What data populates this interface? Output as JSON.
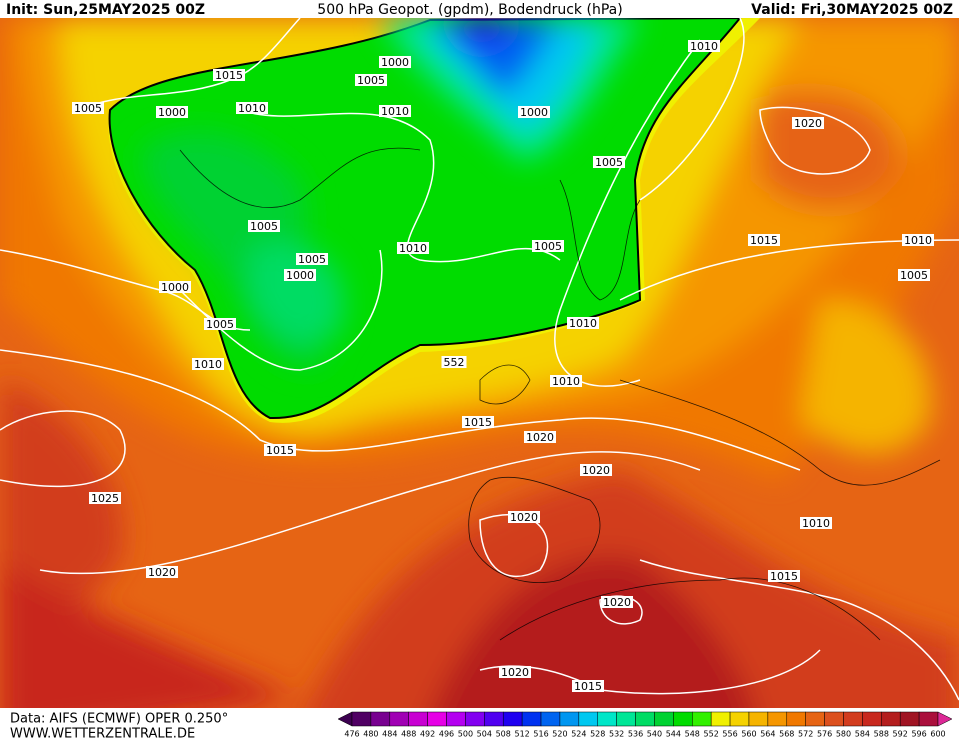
{
  "header": {
    "init": "Init: Sun,25MAY2025 00Z",
    "title": "500 hPa Geopot. (gpdm), Bodendruck (hPa)",
    "valid": "Valid: Fri,30MAY2025 00Z"
  },
  "map": {
    "isobar_labels": [
      "1015",
      "1005",
      "1000",
      "1010",
      "1005",
      "1000",
      "1010",
      "1010",
      "1000",
      "1020",
      "1005",
      "1005",
      "1005",
      "1000",
      "1010",
      "1005",
      "1015",
      "1010",
      "1005",
      "1000",
      "1005",
      "1010",
      "1010",
      "552",
      "1010",
      "1015",
      "1020",
      "1015",
      "1020",
      "1025",
      "1020",
      "1010",
      "1020",
      "1015",
      "1020",
      "1020",
      "1015"
    ]
  },
  "colorbar": {
    "labels": [
      476,
      480,
      484,
      488,
      492,
      496,
      500,
      504,
      508,
      512,
      516,
      520,
      524,
      528,
      532,
      536,
      540,
      544,
      548,
      552,
      556,
      560,
      564,
      568,
      572,
      576,
      580,
      584,
      588,
      592,
      596,
      600
    ],
    "colors": [
      "#3c0050",
      "#500064",
      "#780090",
      "#a000b4",
      "#c800d2",
      "#e600e6",
      "#b400f0",
      "#8200f0",
      "#5000f0",
      "#1e00f0",
      "#0032f0",
      "#0064f0",
      "#0096f0",
      "#00c8f0",
      "#00e6c8",
      "#00e696",
      "#00dc64",
      "#00d232",
      "#00dc00",
      "#32f000",
      "#f0f000",
      "#f5d200",
      "#f5b400",
      "#f59600",
      "#f07800",
      "#e66414",
      "#dc501e",
      "#d23c1e",
      "#c8281e",
      "#b41e1e",
      "#a01423",
      "#aa0f3c",
      "#dc2896"
    ]
  },
  "footer": {
    "source": "Data: AIFS (ECMWF) OPER 0.250°",
    "site": "WWW.WETTERZENTRALE.DE"
  }
}
